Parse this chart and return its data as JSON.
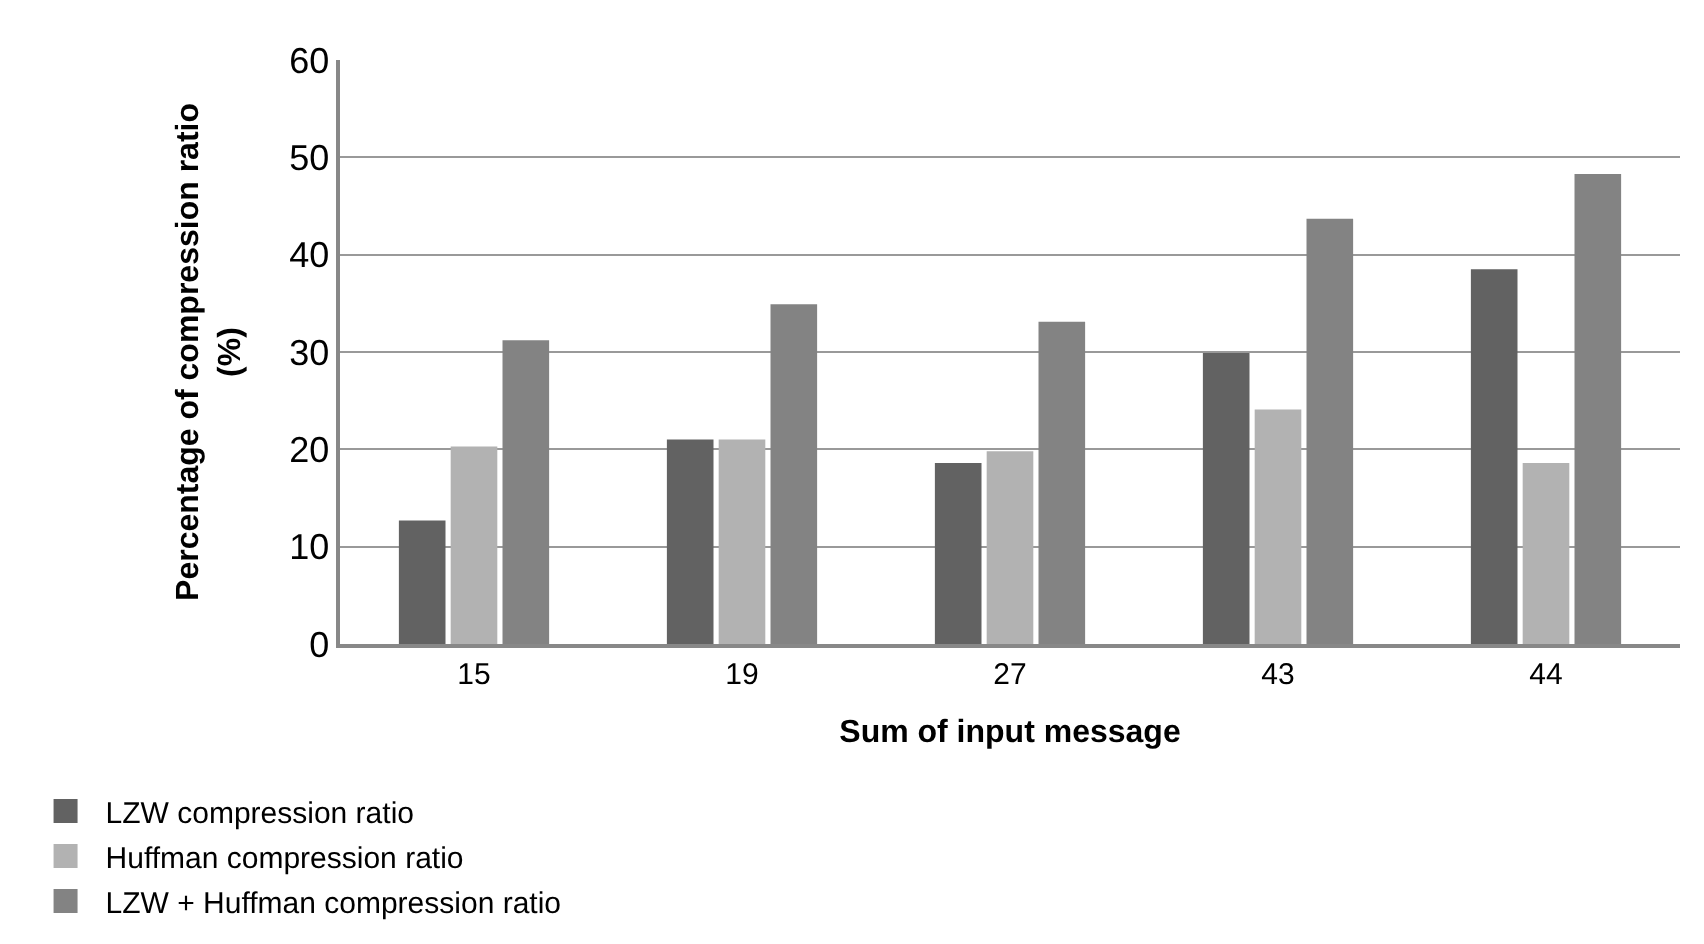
{
  "chart_data": {
    "type": "bar",
    "xlabel": "Sum of input message",
    "ylabel": "Percentage of compression ratio\n(%)",
    "categories": [
      "15",
      "19",
      "27",
      "43",
      "44"
    ],
    "series": [
      {
        "name": "LZW compression ratio",
        "color": "#626262",
        "values": [
          12.7,
          21.0,
          18.6,
          29.9,
          38.5
        ]
      },
      {
        "name": "Huffman compression ratio",
        "color": "#b2b2b2",
        "values": [
          20.3,
          21.0,
          19.8,
          24.1,
          18.6
        ]
      },
      {
        "name": "LZW + Huffman compression ratio",
        "color": "#838383",
        "values": [
          31.2,
          34.9,
          33.1,
          43.7,
          48.3
        ]
      }
    ],
    "ylim": [
      0,
      60
    ],
    "yticks": [
      0,
      10,
      20,
      30,
      40,
      50,
      60
    ],
    "grid": "y",
    "legend": "bottom"
  }
}
